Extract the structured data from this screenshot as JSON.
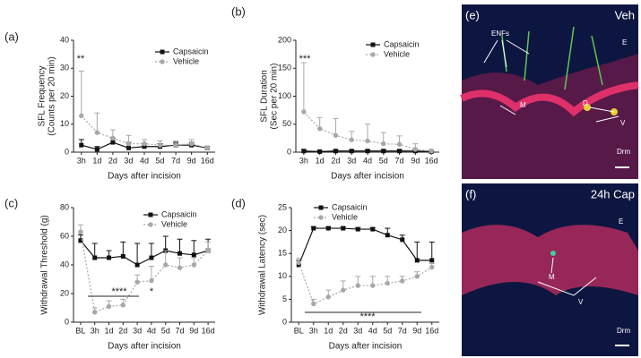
{
  "chart_data": [
    {
      "type": "line",
      "panel": "(a)",
      "ylabel": [
        "SFL Frequency",
        "(Counts per 20 min)"
      ],
      "xlabel": "Days after incision",
      "categories": [
        "3h",
        "1d",
        "2d",
        "3d",
        "4d",
        "5d",
        "7d",
        "9d",
        "16d"
      ],
      "ylim": [
        0,
        40
      ],
      "yticks": [
        0,
        10,
        20,
        30,
        40
      ],
      "series": [
        {
          "name": "Capsaicin",
          "color": "#111111",
          "marker": "square",
          "values": [
            2.5,
            1,
            3.5,
            1.5,
            2,
            2,
            2.5,
            2.5,
            1.5
          ],
          "errors": [
            2,
            1,
            1.5,
            2,
            1,
            1,
            1,
            1,
            0.5
          ]
        },
        {
          "name": "Vehicle",
          "color": "#a8a8a8",
          "marker": "circle",
          "values": [
            13,
            7,
            5,
            3,
            3,
            2.5,
            2.5,
            3,
            1.5
          ],
          "errors": [
            16,
            7,
            3,
            3,
            1.5,
            1.5,
            1.5,
            1.5,
            0.5
          ]
        }
      ],
      "annotations": [
        "**"
      ]
    },
    {
      "type": "line",
      "panel": "(b)",
      "ylabel": [
        "SFL Duration",
        "(Sec per 20 min)"
      ],
      "xlabel": "Days after incision",
      "categories": [
        "3h",
        "1d",
        "2d",
        "3d",
        "4d",
        "5d",
        "7d",
        "9d",
        "16d"
      ],
      "ylim": [
        0,
        200
      ],
      "yticks": [
        0,
        50,
        100,
        150,
        200
      ],
      "series": [
        {
          "name": "Capsaicin",
          "color": "#111111",
          "marker": "square",
          "values": [
            2,
            1,
            2,
            2,
            2,
            2,
            2,
            2,
            1
          ],
          "errors": [
            2,
            1,
            2,
            2,
            2,
            2,
            2,
            2,
            1
          ]
        },
        {
          "name": "Vehicle",
          "color": "#a8a8a8",
          "marker": "circle",
          "values": [
            72,
            42,
            30,
            22,
            20,
            15,
            14,
            5,
            2
          ],
          "errors": [
            88,
            20,
            30,
            15,
            30,
            20,
            15,
            10,
            3
          ]
        }
      ],
      "annotations": [
        "***"
      ]
    },
    {
      "type": "line",
      "panel": "(c)",
      "ylabel": [
        "Withdrawal Threshold (g)"
      ],
      "xlabel": "Days after incision",
      "categories": [
        "BL",
        "3h",
        "1d",
        "2d",
        "3d",
        "4d",
        "5d",
        "7d",
        "9d",
        "16d"
      ],
      "ylim": [
        0,
        80
      ],
      "yticks": [
        0,
        20,
        40,
        60,
        80
      ],
      "series": [
        {
          "name": "Capsaicin",
          "color": "#111111",
          "marker": "square",
          "values": [
            57,
            45,
            45,
            46,
            40,
            45,
            50,
            48,
            47,
            50
          ],
          "errors": [
            4,
            10,
            5,
            10,
            15,
            10,
            10,
            10,
            10,
            8
          ]
        },
        {
          "name": "Vehicle",
          "color": "#a8a8a8",
          "marker": "circle",
          "values": [
            63,
            7,
            11,
            12,
            28,
            29,
            40,
            38,
            40,
            50
          ],
          "errors": [
            5,
            3,
            4,
            4,
            5,
            10,
            10,
            7,
            5,
            6
          ]
        }
      ],
      "annotations": [
        "****",
        "*"
      ]
    },
    {
      "type": "line",
      "panel": "(d)",
      "ylabel": [
        "Withdrawal Latency (sec)"
      ],
      "xlabel": "Days after incision",
      "categories": [
        "BL",
        "3h",
        "1d",
        "2d",
        "3d",
        "4d",
        "5d",
        "7d",
        "9d",
        "16d"
      ],
      "ylim": [
        0,
        25
      ],
      "yticks": [
        0,
        5,
        10,
        15,
        20,
        25
      ],
      "series": [
        {
          "name": "Capsaicin",
          "color": "#111111",
          "marker": "square",
          "values": [
            12.5,
            20.5,
            20.5,
            20.5,
            20.3,
            20.3,
            19,
            18,
            13.5,
            13.5
          ],
          "errors": [
            1,
            0.3,
            0.3,
            0.3,
            0.3,
            0.3,
            1.5,
            1,
            4,
            4
          ]
        },
        {
          "name": "Vehicle",
          "color": "#a8a8a8",
          "marker": "circle",
          "values": [
            13,
            4,
            5.5,
            7,
            8,
            8,
            8.5,
            9,
            10,
            12
          ],
          "errors": [
            1,
            1,
            1.5,
            2,
            2,
            2,
            1.5,
            1,
            1,
            0.8
          ]
        }
      ],
      "annotations": [
        "****"
      ]
    }
  ],
  "images": [
    {
      "panel": "(e)",
      "label": "Veh",
      "annotations": [
        "ENFs",
        "E",
        "M",
        "D",
        "V",
        "Drm"
      ]
    },
    {
      "panel": "(f)",
      "label": "24h Cap",
      "annotations": [
        "E",
        "M",
        "V",
        "Drm"
      ]
    }
  ]
}
